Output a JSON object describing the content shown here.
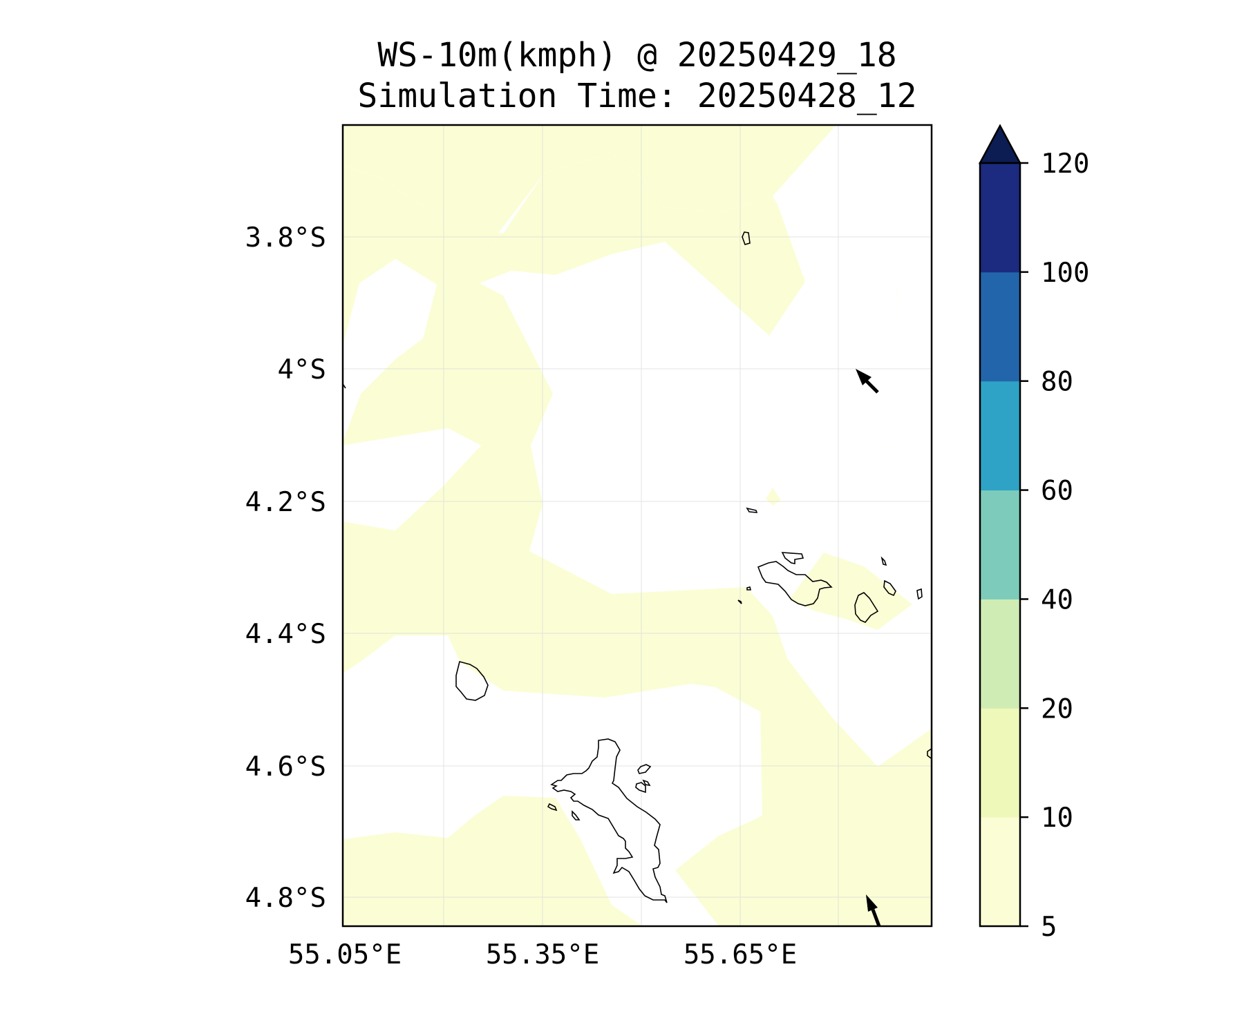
{
  "map": {
    "title_line1": "WS-10m(kmph) @ 20250429_18",
    "title_line2": "Simulation Time: 20250428_12",
    "lat_ticks": [
      "3.8°S",
      "4°S",
      "4.2°S",
      "4.4°S",
      "4.6°S",
      "4.8°S"
    ],
    "lon_ticks": [
      "55.05°E",
      "55.35°E",
      "55.65°E"
    ],
    "fill_color": "#fbfed5",
    "grid": true,
    "wind_vector_color": "#000000"
  },
  "colorbar": {
    "labels": [
      "5",
      "10",
      "20",
      "40",
      "60",
      "80",
      "100",
      "120"
    ],
    "levels": [
      5,
      10,
      20,
      40,
      60,
      80,
      100,
      120
    ],
    "colors": [
      "#fbfed5",
      "#eef8b9",
      "#cfecb4",
      "#7dccbb",
      "#2ea3c5",
      "#2365ab",
      "#1c2b7f",
      "#0c1d53"
    ],
    "extend": "max",
    "cmap": "YlGnBu"
  }
}
